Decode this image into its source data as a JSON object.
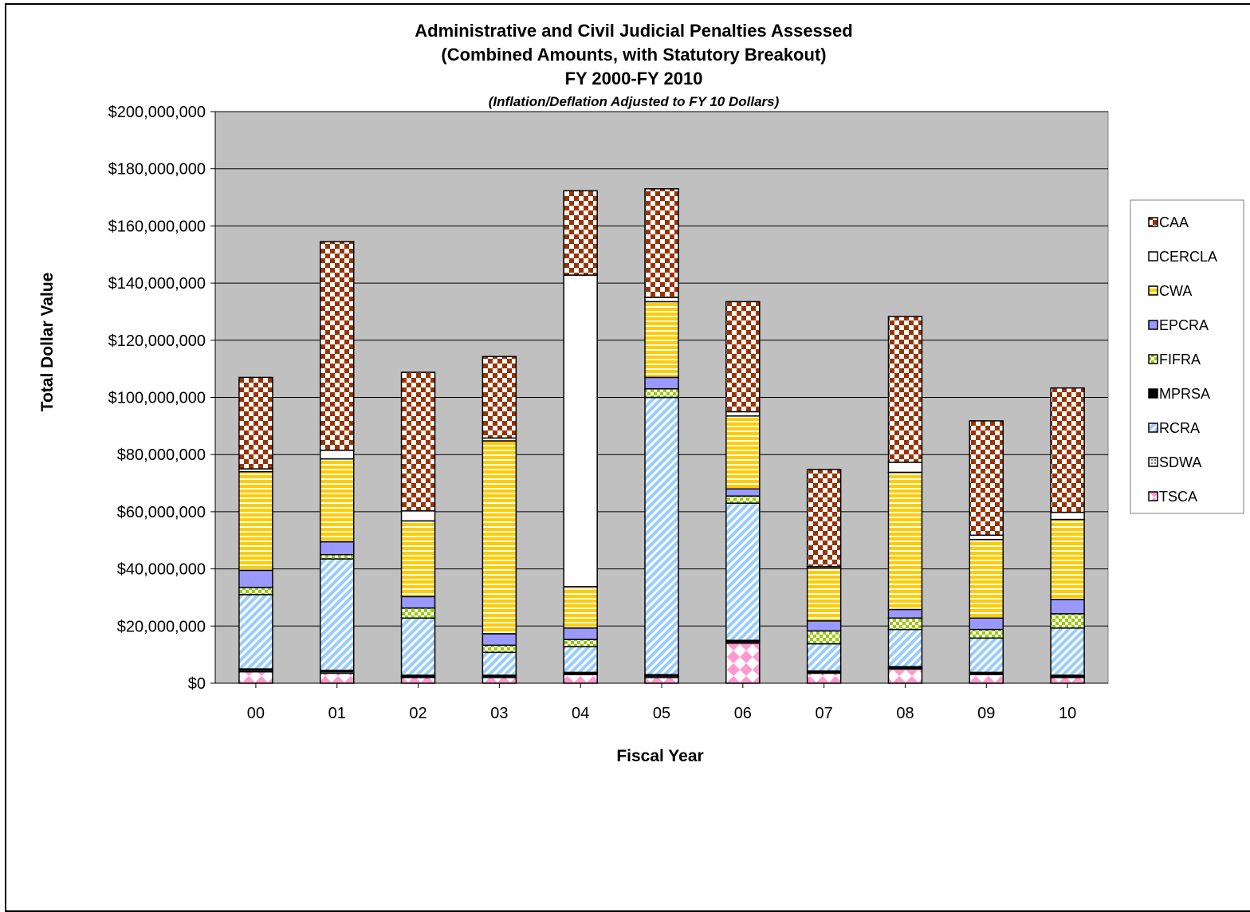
{
  "chart_data": {
    "type": "bar",
    "stacked": true,
    "title_lines": [
      "Administrative and Civil Judicial Penalties Assessed",
      "(Combined Amounts, with Statutory Breakout)",
      "FY 2000-FY 2010"
    ],
    "subtitle": "(Inflation/Deflation Adjusted to FY 10 Dollars)",
    "xlabel": "Fiscal Year",
    "ylabel": "Total Dollar Value",
    "ylim": [
      0,
      200000000
    ],
    "y_ticks": [
      "$0",
      "$20,000,000",
      "$40,000,000",
      "$60,000,000",
      "$80,000,000",
      "$100,000,000",
      "$120,000,000",
      "$140,000,000",
      "$160,000,000",
      "$180,000,000",
      "$200,000,000"
    ],
    "categories": [
      "00",
      "01",
      "02",
      "03",
      "04",
      "05",
      "06",
      "07",
      "08",
      "09",
      "10"
    ],
    "legend_position": "right",
    "grid": true,
    "plot_background": "#c0c0c0",
    "series": [
      {
        "name": "TSCA",
        "color": "#ff99cc",
        "pattern": "diamond",
        "values": [
          4000000,
          3500000,
          2000000,
          2000000,
          3000000,
          2000000,
          14000000,
          3500000,
          5000000,
          3000000,
          2000000
        ]
      },
      {
        "name": "SDWA",
        "color": "#808080",
        "pattern": "grid",
        "values": [
          500000,
          500000,
          300000,
          300000,
          300000,
          500000,
          500000,
          300000,
          300000,
          300000,
          300000
        ]
      },
      {
        "name": "MPRSA",
        "color": "#000000",
        "pattern": "solid",
        "values": [
          500000,
          500000,
          500000,
          500000,
          500000,
          500000,
          500000,
          500000,
          500000,
          500000,
          500000
        ]
      },
      {
        "name": "RCRA",
        "color": "#99ccff",
        "pattern": "diagonal",
        "values": [
          26000000,
          39000000,
          20000000,
          8000000,
          9000000,
          97000000,
          48000000,
          9500000,
          13000000,
          12000000,
          16500000
        ]
      },
      {
        "name": "FIFRA",
        "color": "#99cc00",
        "pattern": "checker",
        "values": [
          2500000,
          1500000,
          3500000,
          2500000,
          2500000,
          3000000,
          2500000,
          4500000,
          4000000,
          3000000,
          5000000
        ]
      },
      {
        "name": "EPCRA",
        "color": "#9999ff",
        "pattern": "solid",
        "values": [
          6000000,
          4500000,
          4000000,
          4000000,
          4000000,
          4000000,
          2500000,
          3500000,
          3000000,
          4000000,
          5000000
        ]
      },
      {
        "name": "CWA",
        "color": "#ffcc00",
        "pattern": "horizontal",
        "values": [
          34500000,
          29000000,
          26500000,
          67500000,
          14500000,
          26500000,
          25500000,
          18500000,
          48000000,
          27500000,
          28000000
        ]
      },
      {
        "name": "CERCLA",
        "color": "#ffffff",
        "pattern": "solid",
        "values": [
          1000000,
          3000000,
          3500000,
          1000000,
          109000000,
          1500000,
          1500000,
          500000,
          3500000,
          1500000,
          2500000
        ]
      },
      {
        "name": "CAA",
        "color": "#993300",
        "pattern": "checker-dark",
        "values": [
          32000000,
          73000000,
          48500000,
          28500000,
          29500000,
          38000000,
          38500000,
          34000000,
          51000000,
          40000000,
          43500000
        ]
      }
    ],
    "legend_order": [
      "CAA",
      "CERCLA",
      "CWA",
      "EPCRA",
      "FIFRA",
      "MPRSA",
      "RCRA",
      "SDWA",
      "TSCA"
    ]
  }
}
